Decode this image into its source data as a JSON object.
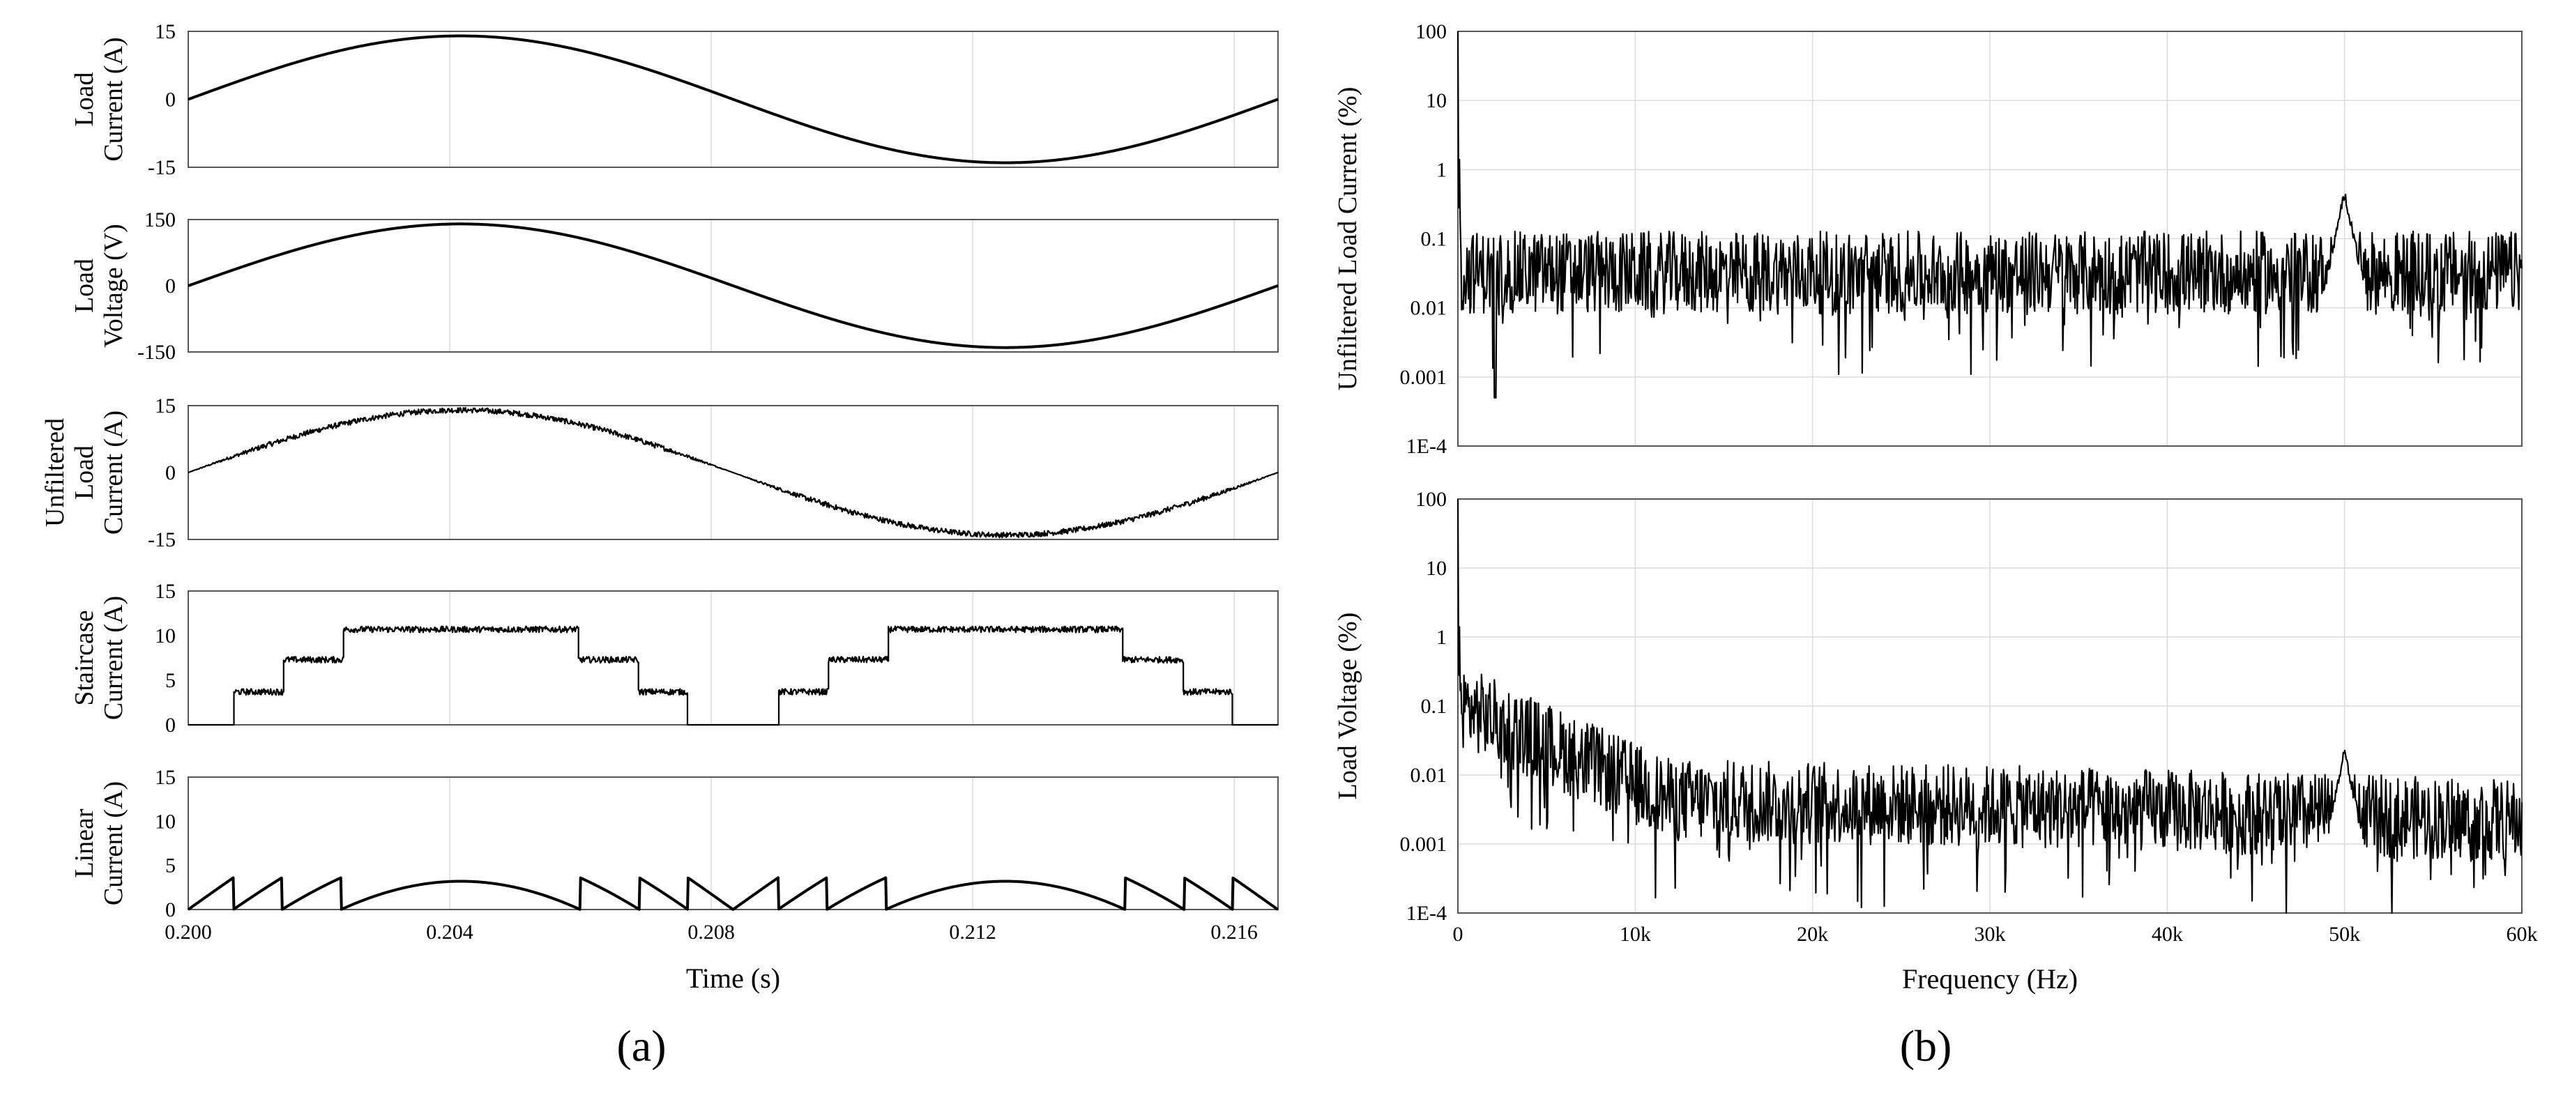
{
  "panel_labels": {
    "a": "(a)",
    "b": "(b)"
  },
  "chart_data": [
    {
      "type": "line",
      "panel": "a",
      "title": "",
      "xlabel": "Time (s)",
      "xlim": [
        0.2,
        0.21667
      ],
      "xticks": [
        "0.200",
        "0.204",
        "0.208",
        "0.212",
        "0.216"
      ],
      "xtick_values": [
        0.2,
        0.204,
        0.208,
        0.212,
        0.216
      ],
      "grid": true,
      "subplots": [
        {
          "ylabel_lines": [
            "Load",
            "Current (A)"
          ],
          "ylim": [
            -15,
            15
          ],
          "yticks": [
            "15",
            "0",
            "-15"
          ],
          "ytick_values": [
            15,
            0,
            -15
          ],
          "signal": {
            "kind": "sine",
            "amplitude": 14,
            "frequency_hz": 60,
            "t0": 0.2,
            "noise": 0
          }
        },
        {
          "ylabel_lines": [
            "Load",
            "Voltage (V)"
          ],
          "ylim": [
            -150,
            150
          ],
          "yticks": [
            "150",
            "0",
            "-150"
          ],
          "ytick_values": [
            150,
            0,
            -150
          ],
          "signal": {
            "kind": "sine",
            "amplitude": 140,
            "frequency_hz": 60,
            "t0": 0.2,
            "noise": 0
          }
        },
        {
          "ylabel_lines": [
            "Unfiltered",
            "Load",
            "Current (A)"
          ],
          "ylim": [
            -15,
            15
          ],
          "yticks": [
            "15",
            "0",
            "-15"
          ],
          "ytick_values": [
            15,
            0,
            -15
          ],
          "signal": {
            "kind": "sine",
            "amplitude": 14,
            "frequency_hz": 60,
            "t0": 0.2,
            "noise": 0.6
          }
        },
        {
          "ylabel_lines": [
            "Staircase",
            "Current (A)"
          ],
          "ylim": [
            0,
            15
          ],
          "yticks": [
            "15",
            "10",
            "5",
            "0"
          ],
          "ytick_values": [
            15,
            10,
            5,
            0
          ],
          "signal": {
            "kind": "staircase",
            "levels": [
              0,
              3.7,
              7.3,
              10.7
            ],
            "thresholds_fraction": [
              0.26,
              0.52,
              0.78
            ],
            "frequency_hz": 60,
            "t0": 0.2,
            "amplitude": 14,
            "noise": 0.35
          }
        },
        {
          "ylabel_lines": [
            "Linear",
            "Current (A)"
          ],
          "ylim": [
            0,
            15
          ],
          "yticks": [
            "15",
            "10",
            "5",
            "0"
          ],
          "ytick_values": [
            15,
            10,
            5,
            0
          ],
          "signal": {
            "kind": "linear_residual",
            "step": 3.6,
            "frequency_hz": 60,
            "t0": 0.2,
            "amplitude": 14
          }
        }
      ]
    },
    {
      "type": "line",
      "panel": "b",
      "title": "",
      "xlabel": "Frequency (Hz)",
      "xlim": [
        0,
        60000
      ],
      "xticks": [
        "0",
        "10k",
        "20k",
        "30k",
        "40k",
        "50k",
        "60k"
      ],
      "xtick_values": [
        0,
        10000,
        20000,
        30000,
        40000,
        50000,
        60000
      ],
      "yscale": "log",
      "grid": true,
      "subplots": [
        {
          "ylabel": "Unfiltered Load Current (%)",
          "ylim": [
            0.0001,
            100
          ],
          "yticks": [
            "100",
            "10",
            "1",
            "0.1",
            "0.01",
            "0.001",
            "1E-4"
          ],
          "ytick_values": [
            100,
            10,
            1,
            0.1,
            0.01,
            0.001,
            0.0001
          ],
          "spectrum": {
            "fundamental_percent": 100,
            "near_dc_percent": 1.4,
            "noise_floor_percent": 0.045,
            "floor_decay": false,
            "dip_min_percent": 0.0005,
            "dip_at_hz": 2100,
            "switching_peak_hz": 50000,
            "switching_peak_percent": 0.55
          }
        },
        {
          "ylabel": "Load Voltage (%)",
          "ylim": [
            0.0001,
            100
          ],
          "yticks": [
            "100",
            "10",
            "1",
            "0.1",
            "0.01",
            "0.001",
            "1E-4"
          ],
          "ytick_values": [
            100,
            10,
            1,
            0.1,
            0.01,
            0.001,
            0.0001
          ],
          "spectrum": {
            "fundamental_percent": 100,
            "near_dc_percent": 1.4,
            "noise_floor_percent": 0.15,
            "floor_decay": true,
            "floor_end_percent": 0.0025,
            "switching_peak_hz": 50000,
            "switching_peak_percent": 0.026
          }
        }
      ]
    }
  ]
}
